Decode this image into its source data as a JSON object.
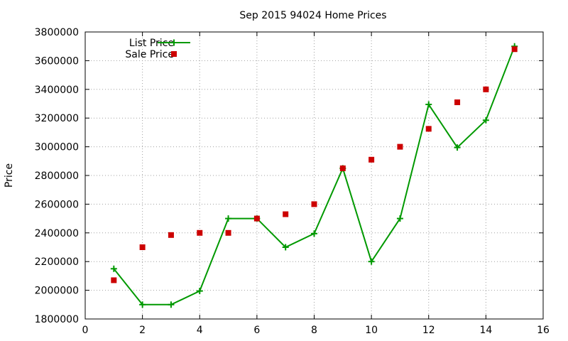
{
  "chart_data": {
    "type": "line",
    "title": "Sep 2015 94024 Home Prices",
    "xlabel": "",
    "ylabel": "Price",
    "xlim": [
      0,
      16
    ],
    "ylim": [
      1800000,
      3800000
    ],
    "x_ticks": [
      0,
      2,
      4,
      6,
      8,
      10,
      12,
      14,
      16
    ],
    "y_ticks": [
      1800000,
      2000000,
      2200000,
      2400000,
      2600000,
      2800000,
      3000000,
      3200000,
      3400000,
      3600000,
      3800000
    ],
    "grid": true,
    "legend_position": "top-left",
    "series": [
      {
        "name": "List Price",
        "style": "line+plus",
        "color": "#009900",
        "x": [
          1,
          2,
          3,
          4,
          5,
          6,
          7,
          8,
          9,
          10,
          11,
          12,
          13,
          14,
          15
        ],
        "y": [
          2150000,
          1900000,
          1900000,
          1995000,
          2500000,
          2500000,
          2300000,
          2395000,
          2850000,
          2200000,
          2500000,
          3295000,
          2995000,
          3185000,
          3700000
        ]
      },
      {
        "name": "Sale Price",
        "style": "square",
        "color": "#cc0000",
        "x": [
          1,
          2,
          3,
          4,
          5,
          6,
          7,
          8,
          9,
          10,
          11,
          12,
          13,
          14,
          15
        ],
        "y": [
          2070000,
          2300000,
          2385000,
          2400000,
          2400000,
          2500000,
          2530000,
          2600000,
          2850000,
          2910000,
          3000000,
          3125000,
          3310000,
          3400000,
          3680000
        ]
      }
    ]
  }
}
